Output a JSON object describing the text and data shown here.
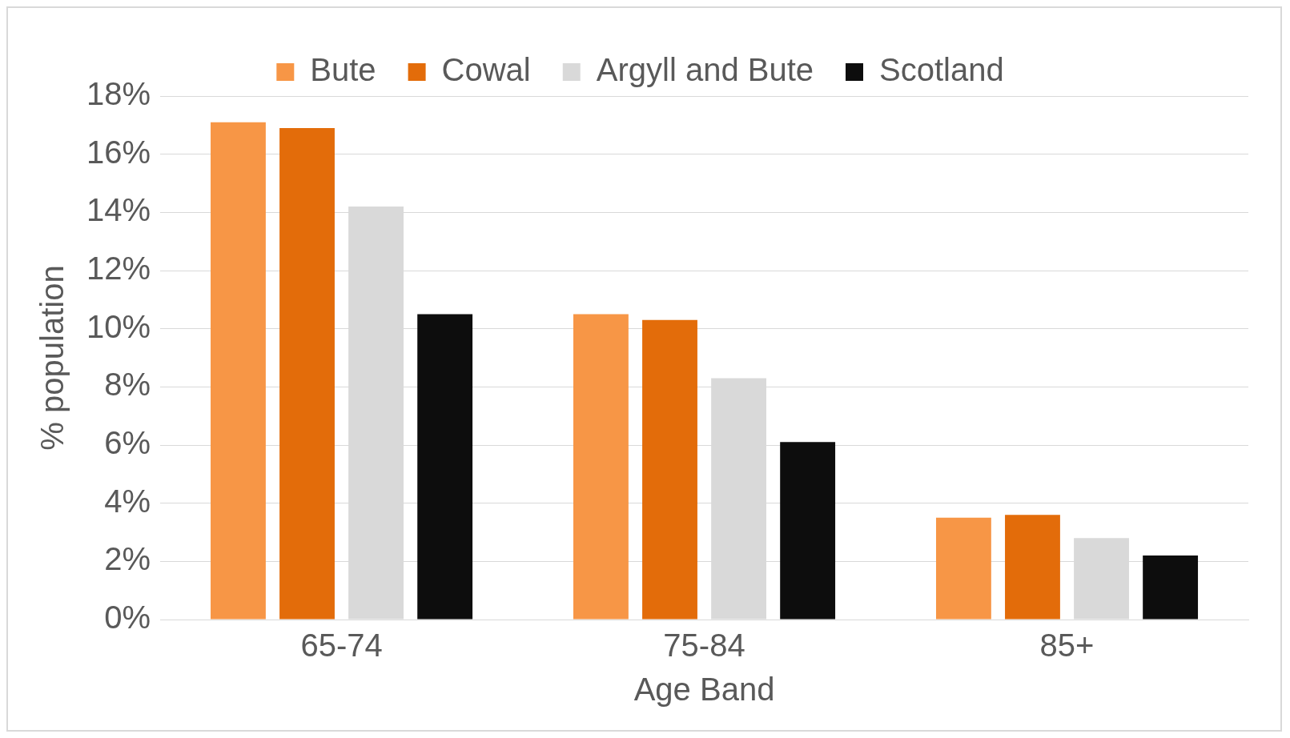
{
  "chart_data": {
    "type": "bar",
    "xlabel": "Age Band",
    "ylabel": "% population",
    "categories": [
      "65-74",
      "75-84",
      "85+"
    ],
    "series": [
      {
        "name": "Bute",
        "color": "#f79646",
        "values": [
          17.1,
          10.5,
          3.5
        ]
      },
      {
        "name": "Cowal",
        "color": "#e36c0a",
        "values": [
          16.9,
          10.3,
          3.6
        ]
      },
      {
        "name": "Argyll and Bute",
        "color": "#d9d9d9",
        "values": [
          14.2,
          8.3,
          2.8
        ]
      },
      {
        "name": "Scotland",
        "color": "#0d0d0d",
        "values": [
          10.5,
          6.1,
          2.2
        ]
      }
    ],
    "ylim": [
      0,
      18
    ],
    "yticks": [
      {
        "value": 0,
        "label": "0%"
      },
      {
        "value": 2,
        "label": "2%"
      },
      {
        "value": 4,
        "label": "4%"
      },
      {
        "value": 6,
        "label": "6%"
      },
      {
        "value": 8,
        "label": "8%"
      },
      {
        "value": 10,
        "label": "10%"
      },
      {
        "value": 12,
        "label": "12%"
      },
      {
        "value": 14,
        "label": "14%"
      },
      {
        "value": 16,
        "label": "16%"
      },
      {
        "value": 18,
        "label": "18%"
      }
    ],
    "grid": "y",
    "legend": "top"
  }
}
